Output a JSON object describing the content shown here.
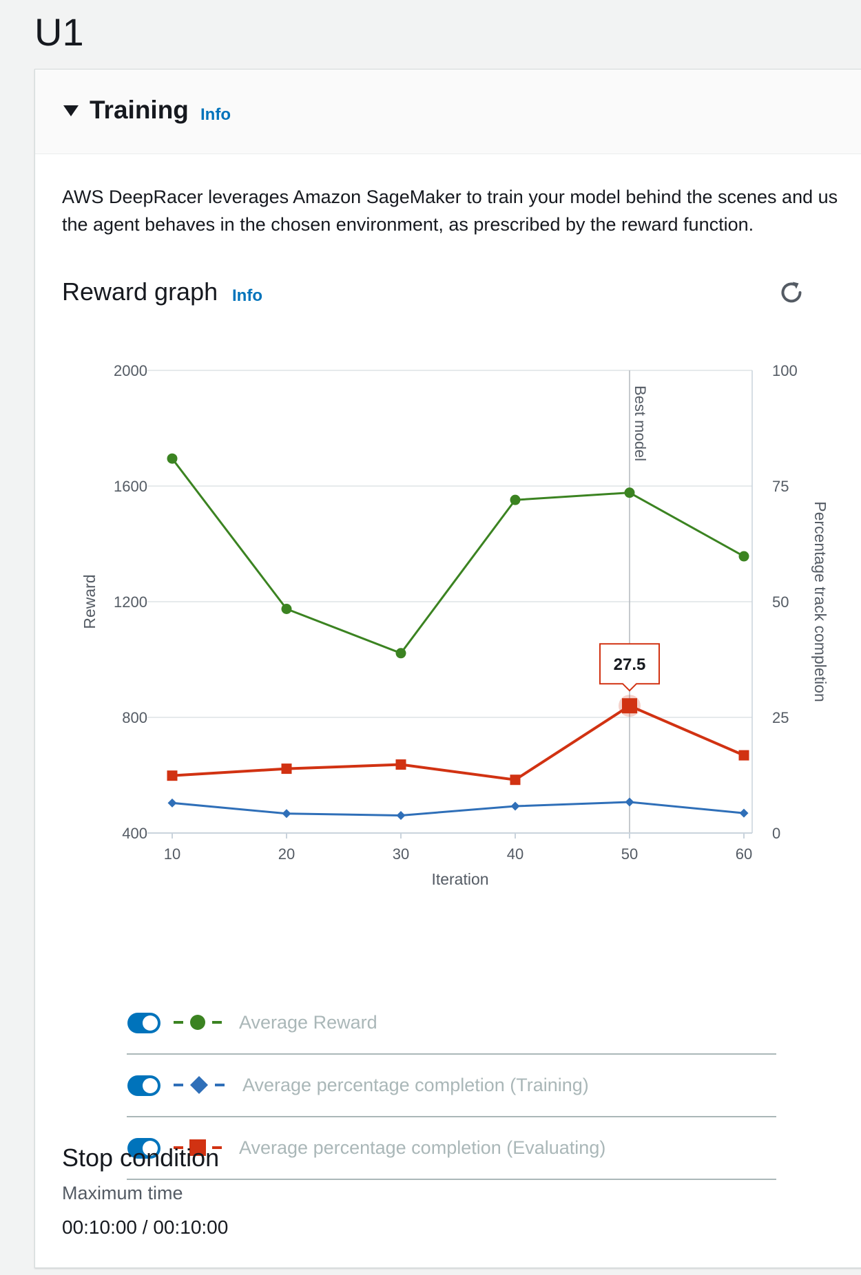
{
  "page": {
    "title": "U1"
  },
  "training": {
    "title": "Training",
    "info": "Info",
    "description_line1": "AWS DeepRacer leverages Amazon SageMaker to train your model behind the scenes and us",
    "description_line2": "the agent behaves in the chosen environment, as prescribed by the reward function."
  },
  "reward_graph": {
    "title": "Reward graph",
    "info": "Info",
    "refresh_icon": "refresh-icon"
  },
  "chart_data": {
    "type": "line",
    "xlabel": "Iteration",
    "ylabel": "Reward",
    "y2label": "Percentage track completion",
    "x": [
      10,
      20,
      30,
      40,
      50,
      60
    ],
    "xticks": [
      "10",
      "20",
      "30",
      "40",
      "50",
      "60"
    ],
    "yticks": [
      "400",
      "800",
      "1200",
      "1600",
      "2000"
    ],
    "y2ticks": [
      "0",
      "25",
      "50",
      "75",
      "100"
    ],
    "ylim": [
      400,
      2000
    ],
    "y2lim": [
      0,
      100
    ],
    "grid": true,
    "marker_line": {
      "x": 50,
      "label": "Best model"
    },
    "tooltip": {
      "series": "Average percentage completion (Evaluating)",
      "x": 50,
      "text": "27.5"
    },
    "series": [
      {
        "name": "Average Reward",
        "axis": "left",
        "color": "#3b8321",
        "marker": "circle",
        "values": [
          1695,
          1175,
          1022,
          1552,
          1577,
          1357
        ]
      },
      {
        "name": "Average percentage completion (Training)",
        "axis": "right",
        "color": "#2f6fb8",
        "marker": "diamond",
        "values": [
          6.5,
          4.2,
          3.8,
          5.8,
          6.7,
          4.3
        ]
      },
      {
        "name": "Average percentage completion (Evaluating)",
        "axis": "right",
        "color": "#d13212",
        "marker": "square",
        "values": [
          12.4,
          13.9,
          14.8,
          11.5,
          27.5,
          16.8
        ]
      }
    ]
  },
  "legend": {
    "items": [
      {
        "label": "Average Reward",
        "enabled": true
      },
      {
        "label": "Average percentage completion (Training)",
        "enabled": true
      },
      {
        "label": "Average percentage completion (Evaluating)",
        "enabled": true
      }
    ]
  },
  "stop_condition": {
    "title": "Stop condition",
    "label": "Maximum time",
    "value": "00:10:00 / 00:10:00"
  }
}
